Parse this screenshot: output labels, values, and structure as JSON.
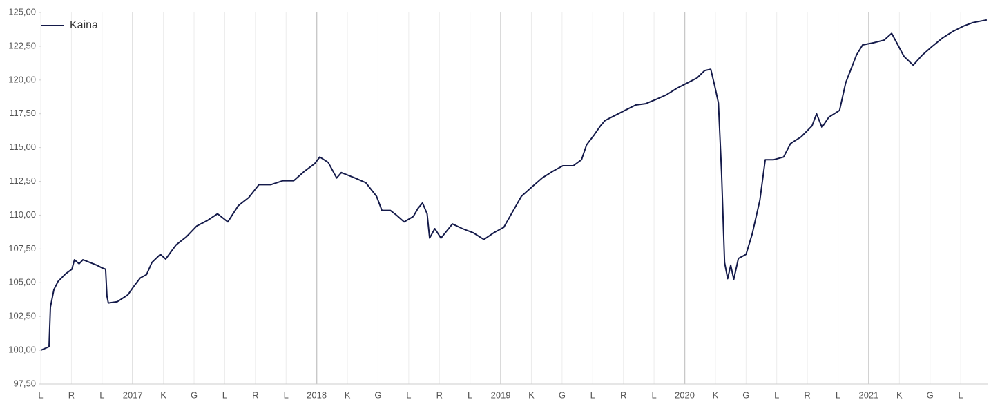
{
  "chart_data": {
    "type": "line",
    "xlim": [
      0,
      61.75
    ],
    "xticks": [
      {
        "value": 0,
        "label": "L"
      },
      {
        "value": 2,
        "label": "R"
      },
      {
        "value": 4,
        "label": "L"
      },
      {
        "value": 6,
        "label": "2017"
      },
      {
        "value": 8,
        "label": "K"
      },
      {
        "value": 10,
        "label": "G"
      },
      {
        "value": 12,
        "label": "L"
      },
      {
        "value": 14,
        "label": "R"
      },
      {
        "value": 16,
        "label": "L"
      },
      {
        "value": 18,
        "label": "2018"
      },
      {
        "value": 20,
        "label": "K"
      },
      {
        "value": 22,
        "label": "G"
      },
      {
        "value": 24,
        "label": "L"
      },
      {
        "value": 26,
        "label": "R"
      },
      {
        "value": 28,
        "label": "L"
      },
      {
        "value": 30,
        "label": "2019"
      },
      {
        "value": 32,
        "label": "K"
      },
      {
        "value": 34,
        "label": "G"
      },
      {
        "value": 36,
        "label": "L"
      },
      {
        "value": 38,
        "label": "R"
      },
      {
        "value": 40,
        "label": "L"
      },
      {
        "value": 42,
        "label": "2020"
      },
      {
        "value": 44,
        "label": "K"
      },
      {
        "value": 46,
        "label": "G"
      },
      {
        "value": 48,
        "label": "L"
      },
      {
        "value": 50,
        "label": "R"
      },
      {
        "value": 52,
        "label": "L"
      },
      {
        "value": 54,
        "label": "2021"
      },
      {
        "value": 56,
        "label": "K"
      },
      {
        "value": 58,
        "label": "G"
      },
      {
        "value": 60,
        "label": "L"
      }
    ],
    "ylim": [
      97.5,
      125
    ],
    "yticks": [
      {
        "value": 97.5,
        "label": "97,50"
      },
      {
        "value": 100,
        "label": "100,00"
      },
      {
        "value": 102.5,
        "label": "102,50"
      },
      {
        "value": 105,
        "label": "105,00"
      },
      {
        "value": 107.5,
        "label": "107,50"
      },
      {
        "value": 110,
        "label": "110,00"
      },
      {
        "value": 112.5,
        "label": "112,50"
      },
      {
        "value": 115,
        "label": "115,00"
      },
      {
        "value": 117.5,
        "label": "117,50"
      },
      {
        "value": 120,
        "label": "120,00"
      },
      {
        "value": 122.5,
        "label": "122,50"
      },
      {
        "value": 125,
        "label": "125,00"
      }
    ],
    "legend": "top-left",
    "series": [
      {
        "name": "Kaina",
        "color": "#141a4a",
        "x": [
          0,
          0.54,
          0.63,
          0.86,
          1.13,
          1.62,
          2.03,
          2.2,
          2.5,
          2.75,
          3.2,
          3.65,
          4.0,
          4.23,
          4.32,
          4.41,
          5.0,
          5.68,
          6.08,
          6.49,
          6.9,
          7.25,
          7.8,
          8.15,
          8.83,
          9.5,
          10.18,
          10.86,
          11.53,
          12.2,
          12.88,
          13.56,
          14.23,
          15.0,
          15.8,
          16.5,
          17.2,
          17.86,
          18.2,
          18.75,
          19.3,
          19.6,
          20.5,
          21.2,
          21.9,
          22.25,
          22.8,
          23.2,
          23.7,
          24.3,
          24.6,
          24.9,
          25.2,
          25.36,
          25.7,
          26.1,
          26.85,
          27.5,
          28.2,
          28.9,
          29.55,
          30.2,
          30.7,
          31.35,
          32.0,
          32.7,
          33.4,
          34.05,
          34.73,
          35.27,
          35.6,
          36.1,
          36.5,
          36.8,
          37.4,
          38.1,
          38.8,
          39.45,
          40.1,
          40.8,
          41.5,
          42.2,
          42.8,
          43.3,
          43.7,
          43.96,
          44.2,
          44.4,
          44.6,
          44.8,
          45.0,
          45.2,
          45.5,
          46.0,
          46.4,
          46.9,
          47.25,
          47.8,
          48.45,
          48.9,
          49.6,
          50.3,
          50.6,
          50.95,
          51.4,
          52.1,
          52.5,
          53.2,
          53.6,
          54.3,
          55.0,
          55.5,
          55.9,
          56.3,
          56.9,
          57.5,
          58.1,
          58.8,
          59.5,
          60.2,
          60.8,
          61.7
        ],
        "values": [
          100.0,
          100.26,
          103.2,
          104.5,
          105.1,
          105.66,
          106.0,
          106.7,
          106.4,
          106.7,
          106.5,
          106.3,
          106.1,
          106.0,
          104.0,
          103.5,
          103.6,
          104.1,
          104.75,
          105.35,
          105.6,
          106.5,
          107.1,
          106.75,
          107.8,
          108.4,
          109.2,
          109.6,
          110.1,
          109.5,
          110.7,
          111.3,
          112.25,
          112.25,
          112.55,
          112.55,
          113.25,
          113.8,
          114.3,
          113.9,
          112.75,
          113.15,
          112.75,
          112.4,
          111.4,
          110.35,
          110.35,
          110.0,
          109.5,
          109.9,
          110.5,
          110.9,
          110.1,
          108.3,
          109.0,
          108.3,
          109.35,
          109.0,
          108.7,
          108.2,
          108.7,
          109.1,
          110.1,
          111.4,
          112.05,
          112.75,
          113.25,
          113.65,
          113.65,
          114.1,
          115.2,
          115.95,
          116.6,
          117.0,
          117.35,
          117.75,
          118.15,
          118.25,
          118.55,
          118.9,
          119.4,
          119.8,
          120.15,
          120.7,
          120.8,
          119.55,
          118.3,
          113.2,
          106.5,
          105.3,
          106.3,
          105.25,
          106.8,
          107.1,
          108.6,
          111.1,
          114.1,
          114.1,
          114.3,
          115.3,
          115.8,
          116.6,
          117.5,
          116.5,
          117.25,
          117.75,
          119.8,
          121.85,
          122.6,
          122.75,
          122.95,
          123.45,
          122.6,
          121.75,
          121.1,
          121.85,
          122.45,
          123.1,
          123.6,
          124.0,
          124.25,
          124.45
        ]
      }
    ]
  }
}
